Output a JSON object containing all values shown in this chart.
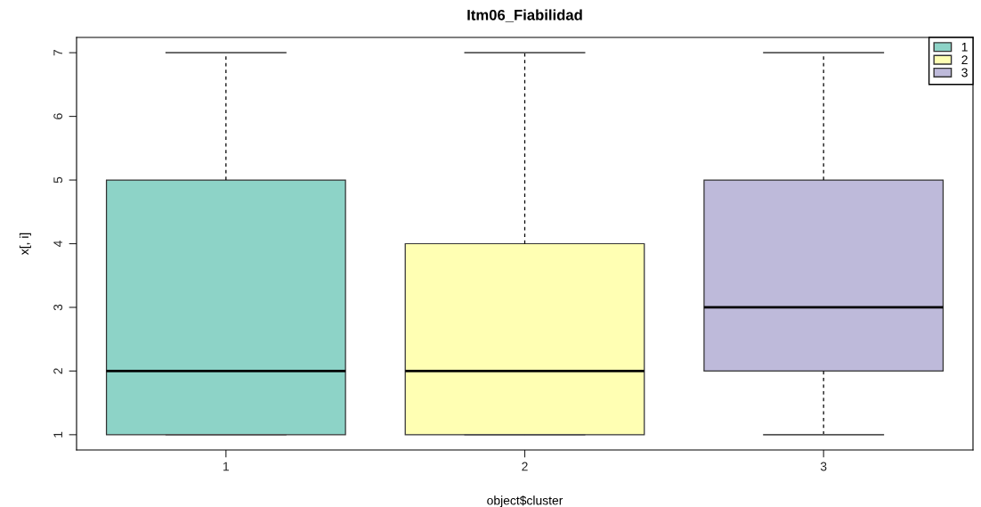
{
  "chart_data": {
    "type": "box",
    "title": "Itm06_Fiabilidad",
    "xlabel": "object$cluster",
    "ylabel": "x[, i]",
    "categories": [
      "1",
      "2",
      "3"
    ],
    "series": [
      {
        "name": "1",
        "color": "#8dd3c7",
        "boxes": [
          {
            "low": 1,
            "q1": 1,
            "median": 2,
            "q3": 5,
            "high": 7
          },
          null,
          null
        ]
      },
      {
        "name": "2",
        "color": "#ffffb3",
        "boxes": [
          null,
          {
            "low": 1,
            "q1": 1,
            "median": 2,
            "q3": 4,
            "high": 7
          },
          null
        ]
      },
      {
        "name": "3",
        "color": "#bebada",
        "boxes": [
          null,
          null,
          {
            "low": 1,
            "q1": 2,
            "median": 3,
            "q3": 5,
            "high": 7
          }
        ]
      }
    ],
    "ylim": [
      0.76,
      7.24
    ],
    "yticks": [
      1,
      2,
      3,
      4,
      5,
      6,
      7
    ],
    "grid": false,
    "legend": "top right"
  }
}
